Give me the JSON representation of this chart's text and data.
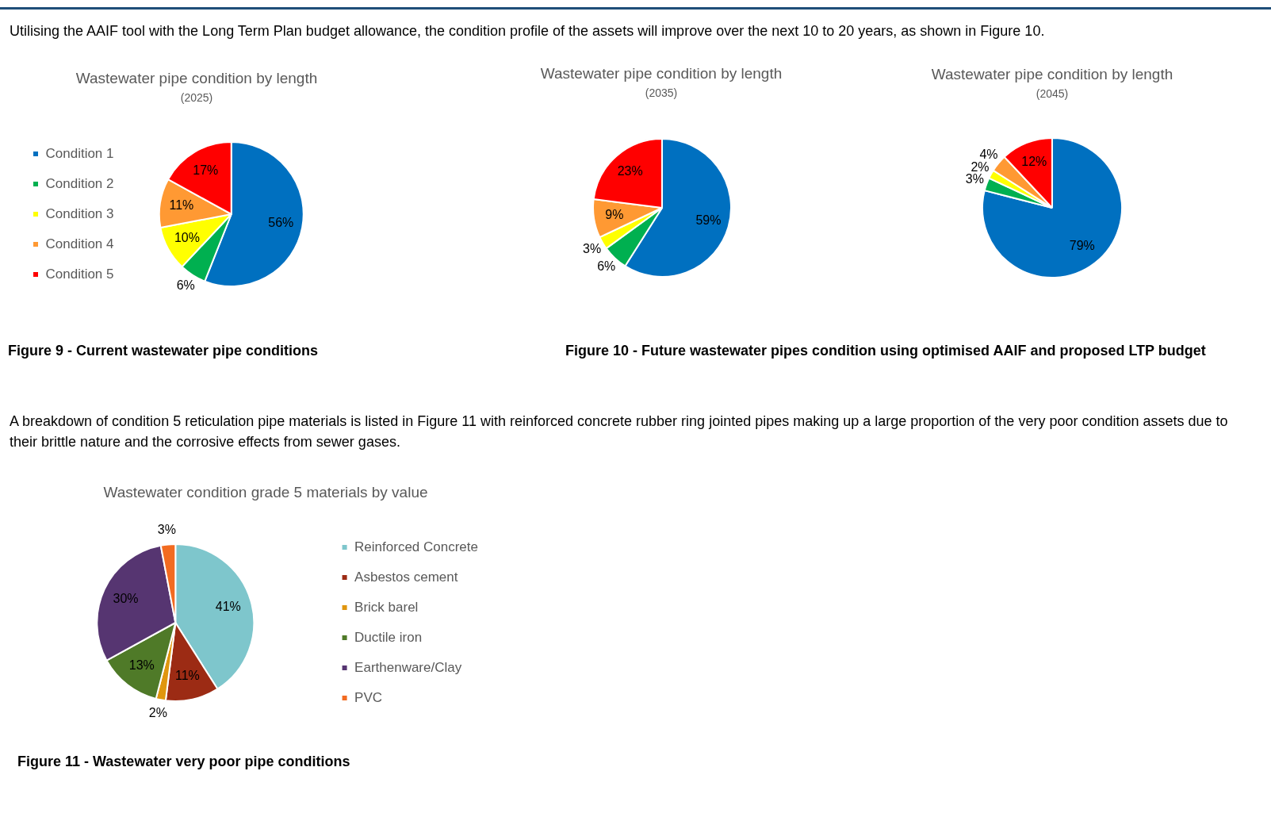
{
  "chart_data": [
    {
      "type": "pie",
      "title": "Wastewater pipe condition by length",
      "subtitle": "(2025)",
      "categories": [
        "Condition 1",
        "Condition 2",
        "Condition 3",
        "Condition 4",
        "Condition 5"
      ],
      "values": [
        56,
        6,
        10,
        11,
        17
      ],
      "value_labels": [
        "56%",
        "6%",
        "10%",
        "11%",
        "17%"
      ],
      "colors": [
        "#0070c0",
        "#00b050",
        "#ffff00",
        "#ff9933",
        "#ff0000"
      ],
      "legend": "left",
      "annotations": [
        "Utilising the AAIF tool with the Long Term Plan budget allowance, the condition profile of the assets will improve over the next 10 to 20 years, as shown in Figure 10.",
        "Figure 9 - Current wastewater pipe conditions"
      ]
    },
    {
      "type": "pie",
      "title": "Wastewater pipe condition by length",
      "subtitle": "(2035)",
      "categories": [
        null,
        null,
        null,
        null,
        null
      ],
      "values": [
        59,
        6,
        3,
        9,
        23
      ],
      "value_labels": [
        "59%",
        "6%",
        "3%",
        "9%",
        "23%"
      ],
      "colors": [
        "#0070c0",
        "#00b050",
        "#ffff00",
        "#ff9933",
        "#ff0000"
      ],
      "annotations": [
        "Figure 10 -  Future wastewater pipes condition using optimised AAIF and proposed LTP budget"
      ]
    },
    {
      "type": "pie",
      "title": "Wastewater pipe condition by length",
      "subtitle": "(2045)",
      "categories": [
        null,
        null,
        null,
        null,
        null
      ],
      "values": [
        79,
        3,
        2,
        4,
        12
      ],
      "value_labels": [
        "79%",
        "3%",
        "2%",
        "4%",
        "12%"
      ],
      "colors": [
        "#0070c0",
        "#00b050",
        "#ffff00",
        "#ff9933",
        "#ff0000"
      ]
    },
    {
      "type": "pie",
      "title": "Wastewater condition grade 5 materials by value",
      "categories": [
        "Reinforced Concrete",
        "Asbestos cement",
        "Brick barel",
        "Ductile iron",
        "Earthenware/Clay",
        "PVC"
      ],
      "values": [
        41,
        11,
        2,
        13,
        30,
        3
      ],
      "value_labels": [
        "41%",
        "11%",
        "2%",
        "13%",
        "30%",
        "3%"
      ],
      "colors": [
        "#7ec6cc",
        "#9c2b14",
        "#e0960e",
        "#4f7a28",
        "#563571",
        "#f26b21"
      ],
      "legend": "right",
      "annotations": [
        "A breakdown of condition 5 reticulation pipe materials is listed in Figure 11 with reinforced concrete rubber ring jointed pipes making up a large proportion of the very poor condition assets due to their brittle nature and the corrosive effects from sewer gases.",
        "Figure 11 - Wastewater very poor pipe conditions"
      ]
    }
  ]
}
